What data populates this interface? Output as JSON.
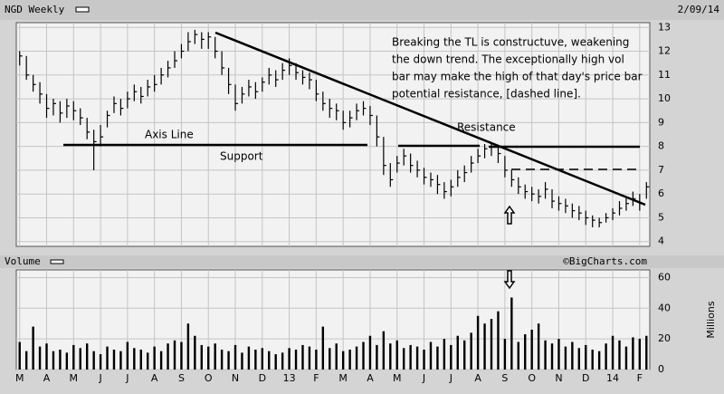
{
  "chart_data": [
    {
      "type": "ohlc",
      "title": "NGD Weekly",
      "date": "2/09/14",
      "color": "#000000",
      "grid": true,
      "ylim": [
        3.8,
        13.2
      ],
      "yticks": [
        4,
        5,
        6,
        7,
        8,
        9,
        10,
        11,
        12,
        13
      ],
      "annotations": [
        "Breaking the TL is constructuve, weakening",
        "the down trend.  The exceptionally high vol",
        "bar may make the high of that day's price bar",
        "potential resistance, [dashed line]."
      ],
      "labels": {
        "axis": "Axis Line",
        "support": "Support",
        "resistance": "Resistance"
      },
      "high": [
        12.0,
        11.8,
        11.0,
        10.7,
        10.2,
        10.0,
        9.9,
        10.0,
        9.9,
        9.6,
        9.2,
        8.7,
        8.9,
        9.5,
        10.1,
        10.0,
        10.3,
        10.6,
        10.5,
        10.8,
        11.0,
        11.3,
        11.6,
        12.0,
        12.3,
        12.8,
        12.9,
        12.8,
        12.8,
        12.6,
        12.0,
        11.3,
        10.6,
        10.5,
        10.8,
        10.7,
        10.9,
        11.3,
        11.2,
        11.5,
        11.7,
        11.5,
        11.2,
        11.1,
        10.8,
        10.3,
        10.0,
        9.8,
        9.5,
        9.5,
        9.8,
        9.9,
        9.7,
        9.3,
        8.4,
        7.3,
        7.6,
        7.9,
        7.7,
        7.4,
        7.1,
        6.9,
        6.8,
        6.5,
        6.6,
        7.0,
        7.2,
        7.6,
        7.9,
        8.1,
        8.1,
        8.0,
        7.6,
        7.0,
        6.7,
        6.4,
        6.3,
        6.2,
        6.5,
        6.2,
        5.9,
        5.8,
        5.6,
        5.5,
        5.3,
        5.1,
        5.0,
        5.2,
        5.4,
        5.7,
        5.9,
        6.1,
        6.0,
        6.5
      ],
      "low": [
        11.4,
        10.8,
        10.3,
        9.8,
        9.2,
        9.3,
        9.0,
        9.2,
        9.1,
        8.9,
        8.3,
        7.0,
        8.0,
        8.8,
        9.4,
        9.3,
        9.6,
        9.9,
        9.8,
        10.1,
        10.3,
        10.6,
        10.9,
        11.3,
        11.7,
        12.0,
        12.3,
        12.1,
        12.1,
        11.7,
        11.0,
        10.2,
        9.5,
        9.8,
        10.1,
        10.0,
        10.3,
        10.6,
        10.5,
        10.8,
        11.0,
        10.8,
        10.6,
        10.4,
        9.9,
        9.5,
        9.2,
        9.1,
        8.7,
        8.8,
        9.1,
        9.3,
        8.9,
        8.0,
        6.8,
        6.3,
        6.9,
        7.2,
        6.9,
        6.7,
        6.4,
        6.3,
        6.0,
        5.8,
        5.9,
        6.3,
        6.5,
        6.9,
        7.3,
        7.5,
        7.6,
        7.3,
        6.7,
        6.3,
        6.0,
        5.8,
        5.7,
        5.6,
        5.8,
        5.4,
        5.3,
        5.2,
        5.0,
        4.9,
        4.7,
        4.6,
        4.6,
        4.8,
        4.9,
        5.1,
        5.3,
        5.5,
        5.3,
        5.8
      ],
      "close": [
        11.8,
        11.0,
        10.6,
        10.2,
        9.6,
        9.8,
        9.4,
        9.7,
        9.5,
        9.2,
        8.6,
        8.2,
        8.4,
        9.3,
        9.8,
        9.6,
        10.0,
        10.3,
        10.1,
        10.5,
        10.6,
        11.0,
        11.3,
        11.6,
        12.0,
        12.4,
        12.7,
        12.5,
        12.6,
        12.0,
        11.3,
        10.6,
        9.8,
        10.2,
        10.5,
        10.3,
        10.7,
        11.0,
        10.8,
        11.2,
        11.4,
        11.1,
        10.9,
        10.8,
        10.2,
        9.8,
        9.6,
        9.5,
        9.0,
        9.2,
        9.5,
        9.6,
        9.3,
        8.4,
        7.2,
        6.6,
        7.3,
        7.6,
        7.2,
        7.0,
        6.7,
        6.6,
        6.4,
        6.1,
        6.3,
        6.7,
        6.9,
        7.3,
        7.6,
        7.9,
        8.0,
        7.7,
        7.0,
        6.6,
        6.3,
        6.1,
        6.0,
        5.9,
        6.2,
        5.7,
        5.6,
        5.5,
        5.3,
        5.2,
        5.0,
        4.9,
        4.8,
        5.0,
        5.2,
        5.4,
        5.6,
        5.8,
        5.6,
        6.3
      ]
    },
    {
      "type": "bar",
      "title": "Volume",
      "source": "©BigCharts.com",
      "y_label": "Millions",
      "color": "#000000",
      "grid": true,
      "ylim": [
        0,
        65
      ],
      "yticks": [
        0,
        20,
        40,
        60
      ],
      "categories": [
        "M",
        null,
        null,
        null,
        "A",
        null,
        null,
        null,
        "M",
        null,
        null,
        null,
        "J",
        null,
        null,
        null,
        "J",
        null,
        null,
        null,
        "A",
        null,
        null,
        null,
        "S",
        null,
        null,
        null,
        "O",
        null,
        null,
        null,
        "N",
        null,
        null,
        null,
        "D",
        null,
        null,
        null,
        "13",
        null,
        null,
        null,
        "F",
        null,
        null,
        null,
        "M",
        null,
        null,
        null,
        "A",
        null,
        null,
        null,
        "M",
        null,
        null,
        null,
        "J",
        null,
        null,
        null,
        "J",
        null,
        null,
        null,
        "A",
        null,
        null,
        null,
        "S",
        null,
        null,
        null,
        "O",
        null,
        null,
        null,
        "N",
        null,
        null,
        null,
        "D",
        null,
        null,
        null,
        "14",
        null,
        null,
        null,
        "F",
        null
      ],
      "values": [
        18,
        12,
        28,
        15,
        17,
        12,
        13,
        11,
        16,
        14,
        17,
        12,
        10,
        15,
        13,
        12,
        18,
        14,
        13,
        11,
        15,
        12,
        17,
        19,
        18,
        30,
        22,
        16,
        15,
        17,
        13,
        12,
        16,
        11,
        15,
        13,
        14,
        12,
        10,
        11,
        14,
        13,
        16,
        15,
        13,
        28,
        14,
        17,
        12,
        13,
        15,
        18,
        22,
        16,
        25,
        17,
        19,
        14,
        16,
        15,
        13,
        18,
        15,
        20,
        16,
        22,
        19,
        24,
        35,
        30,
        33,
        38,
        20,
        47,
        18,
        23,
        26,
        30,
        19,
        17,
        20,
        15,
        18,
        14,
        16,
        13,
        12,
        17,
        22,
        19,
        15,
        21,
        20,
        22
      ]
    }
  ]
}
